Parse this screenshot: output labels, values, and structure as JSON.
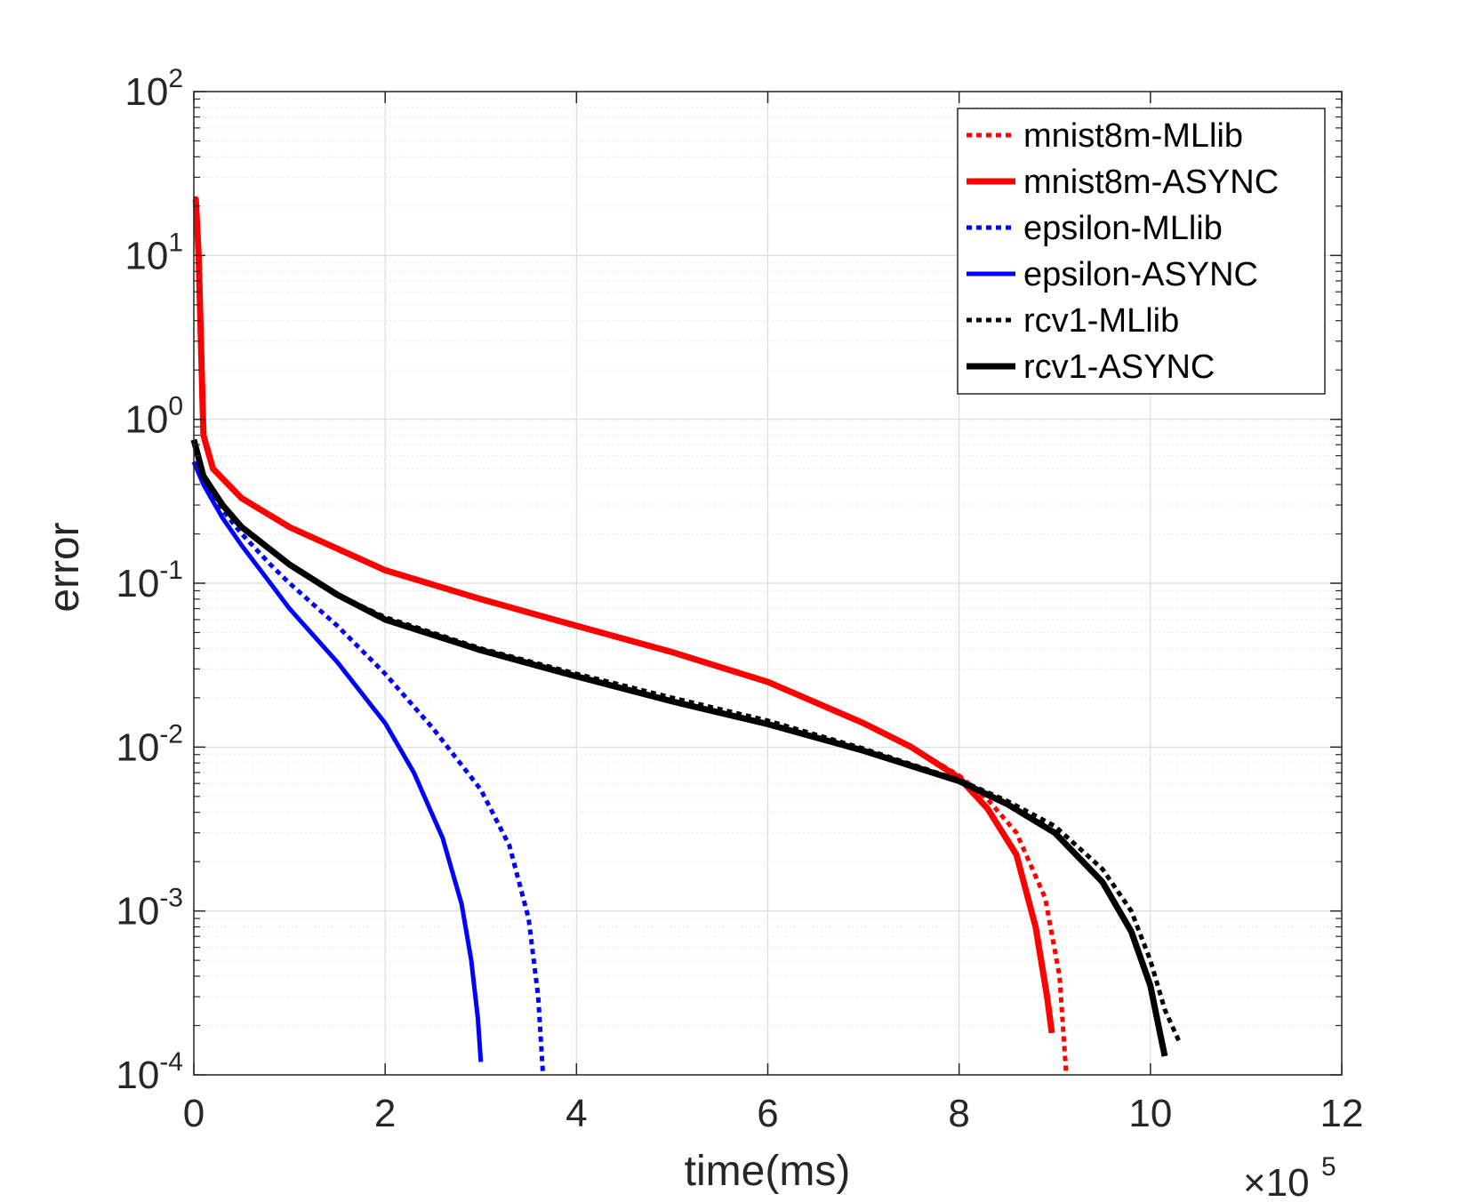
{
  "chart_data": {
    "type": "line",
    "title": "",
    "xlabel": "time(ms)",
    "ylabel": "error",
    "x_multiplier": {
      "base": "×10",
      "exponent": "5"
    },
    "xlim": [
      0,
      12
    ],
    "ylim": [
      0.0001,
      100
    ],
    "yscale": "log",
    "xticks": [
      "0",
      "2",
      "4",
      "6",
      "8",
      "10",
      "12"
    ],
    "yticks": [
      {
        "base": "10",
        "exp": "-4"
      },
      {
        "base": "10",
        "exp": "-3"
      },
      {
        "base": "10",
        "exp": "-2"
      },
      {
        "base": "10",
        "exp": "-1"
      },
      {
        "base": "10",
        "exp": "0"
      },
      {
        "base": "10",
        "exp": "1"
      },
      {
        "base": "10",
        "exp": "2"
      }
    ],
    "grid": true,
    "legend_position": "top-right",
    "series": [
      {
        "name": "mnist8m-MLlib",
        "color": "#ff0000",
        "style": "dotted",
        "x": [
          0.0,
          0.02,
          0.05,
          0.1,
          0.2,
          0.5,
          1,
          2,
          3,
          4,
          5,
          6,
          7,
          7.5,
          8,
          8.3,
          8.6,
          8.9,
          9.05,
          9.12
        ],
        "y": [
          22,
          22,
          10,
          0.8,
          0.5,
          0.33,
          0.22,
          0.12,
          0.08,
          0.055,
          0.038,
          0.025,
          0.014,
          0.01,
          0.0067,
          0.0048,
          0.003,
          0.0012,
          0.0004,
          0.0001
        ]
      },
      {
        "name": "mnist8m-ASYNC",
        "color": "#ff0000",
        "style": "solid",
        "x": [
          0.0,
          0.02,
          0.05,
          0.1,
          0.2,
          0.5,
          1,
          2,
          3,
          4,
          5,
          6,
          7,
          7.5,
          8,
          8.3,
          8.6,
          8.8,
          8.92,
          8.97
        ],
        "y": [
          22,
          22,
          10,
          0.8,
          0.5,
          0.33,
          0.22,
          0.12,
          0.08,
          0.055,
          0.038,
          0.025,
          0.014,
          0.01,
          0.0065,
          0.0042,
          0.0022,
          0.0008,
          0.0003,
          0.00018
        ]
      },
      {
        "name": "epsilon-MLlib",
        "color": "#0000ff",
        "style": "dotted",
        "x": [
          0.0,
          0.1,
          0.3,
          0.5,
          0.8,
          1.0,
          1.5,
          2.0,
          2.5,
          3.0,
          3.3,
          3.5,
          3.6,
          3.65
        ],
        "y": [
          0.55,
          0.42,
          0.28,
          0.2,
          0.13,
          0.1,
          0.055,
          0.028,
          0.013,
          0.0055,
          0.0025,
          0.0009,
          0.0003,
          0.0001
        ]
      },
      {
        "name": "epsilon-ASYNC",
        "color": "#0000ff",
        "style": "solid",
        "x": [
          0.0,
          0.1,
          0.3,
          0.5,
          0.8,
          1.0,
          1.5,
          2.0,
          2.3,
          2.6,
          2.8,
          2.9,
          2.97,
          3.0
        ],
        "y": [
          0.55,
          0.4,
          0.25,
          0.17,
          0.1,
          0.07,
          0.033,
          0.014,
          0.007,
          0.0028,
          0.0011,
          0.0005,
          0.00022,
          0.00012
        ]
      },
      {
        "name": "rcv1-MLlib",
        "color": "#000000",
        "style": "dotted",
        "x": [
          0.0,
          0.1,
          0.3,
          0.5,
          1,
          1.5,
          2,
          3,
          4,
          5,
          6,
          7,
          8,
          8.5,
          9,
          9.5,
          9.8,
          10.0,
          10.15,
          10.3
        ],
        "y": [
          0.75,
          0.45,
          0.3,
          0.22,
          0.13,
          0.085,
          0.062,
          0.04,
          0.028,
          0.02,
          0.0145,
          0.0098,
          0.0063,
          0.0047,
          0.0033,
          0.0018,
          0.001,
          0.0005,
          0.00025,
          0.00016
        ]
      },
      {
        "name": "rcv1-ASYNC",
        "color": "#000000",
        "style": "solid",
        "x": [
          0.0,
          0.1,
          0.3,
          0.5,
          1,
          1.5,
          2,
          3,
          4,
          5,
          6,
          7,
          8,
          8.5,
          9,
          9.5,
          9.8,
          10.0,
          10.1,
          10.15
        ],
        "y": [
          0.75,
          0.45,
          0.3,
          0.22,
          0.13,
          0.085,
          0.06,
          0.039,
          0.027,
          0.019,
          0.0138,
          0.0095,
          0.0062,
          0.0045,
          0.003,
          0.0015,
          0.00075,
          0.00035,
          0.00018,
          0.00013
        ]
      }
    ]
  }
}
